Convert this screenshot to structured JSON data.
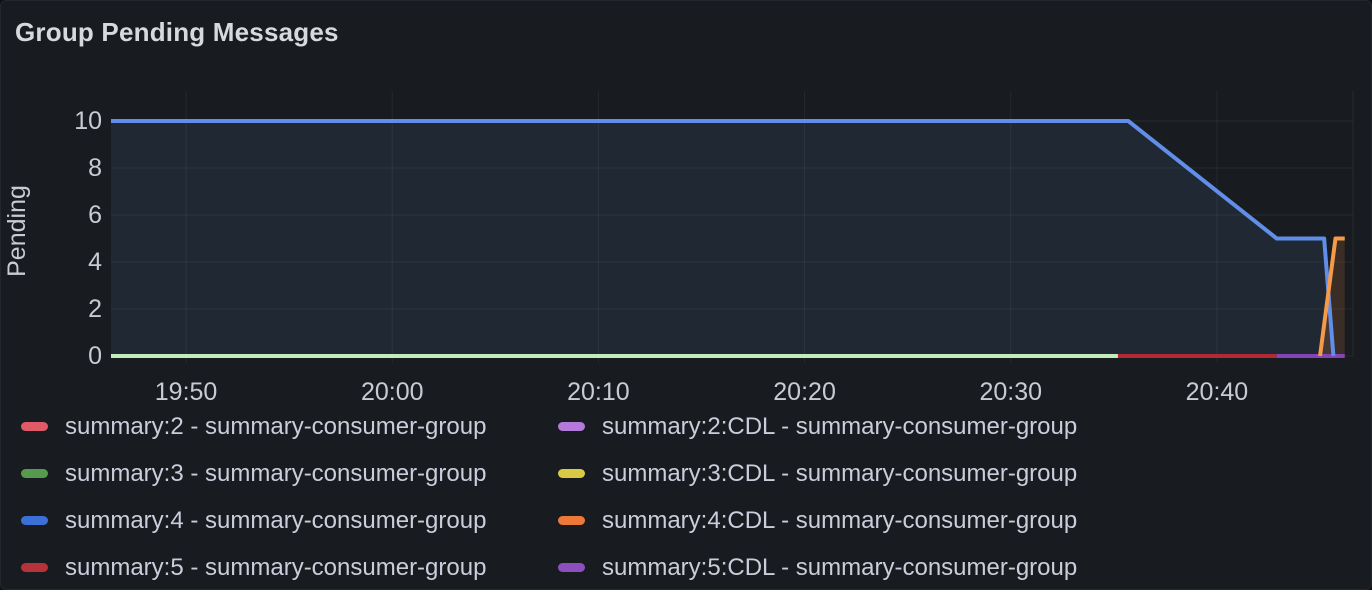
{
  "header": {
    "title": "Group Pending Messages"
  },
  "colors": {
    "panel_bg": "#181b1f",
    "title_text": "#d8d9de",
    "axis_text": "#c9cbd3",
    "legend_text": "#ccccdc",
    "grid_line": "rgba(204,204,220,0.08)"
  },
  "chart_data": {
    "type": "line",
    "title": "Group Pending Messages",
    "xlabel": "",
    "ylabel": "Pending",
    "x_unit": "minutes since 19:00 (HH:MM clock time shown on axis)",
    "x_domain": [
      46.36,
      106.6
    ],
    "ylim": [
      0,
      10
    ],
    "grid": true,
    "legend_position": "bottom",
    "x_ticks": [
      {
        "value": 50,
        "label": "19:50"
      },
      {
        "value": 60,
        "label": "20:00"
      },
      {
        "value": 70,
        "label": "20:10"
      },
      {
        "value": 80,
        "label": "20:20"
      },
      {
        "value": 90,
        "label": "20:30"
      },
      {
        "value": 100,
        "label": "20:40"
      }
    ],
    "y_ticks": [
      0,
      2,
      4,
      6,
      8,
      10
    ],
    "series": [
      {
        "id": "zero-line-green",
        "name": "pale-green zero line (pending = 0 until ~20:35)",
        "color": "#c3ecba",
        "width": 4,
        "fill": null,
        "points": [
          [
            46.36,
            0
          ],
          [
            95.2,
            0
          ]
        ]
      },
      {
        "id": "zero-line-red",
        "name": "dark-red zero line (pending = 0, ~20:35 to ~20:43)",
        "color": "#b22a31",
        "width": 4,
        "fill": null,
        "points": [
          [
            95.2,
            0
          ],
          [
            102.9,
            0
          ]
        ]
      },
      {
        "id": "zero-line-purple",
        "name": "purple zero line (pending = 0, ~20:43 to end)",
        "color": "#8444b8",
        "width": 4,
        "fill": null,
        "points": [
          [
            102.9,
            0
          ],
          [
            106.2,
            0
          ]
        ]
      },
      {
        "id": "blue-pending-line",
        "name": "blue series: 10 pending, drains to 5 then 0",
        "color": "#608ee8",
        "width": 4,
        "fill": "rgba(96,142,232,0.11)",
        "points": [
          [
            46.36,
            10
          ],
          [
            95.7,
            10
          ],
          [
            102.9,
            5
          ],
          [
            105.2,
            5
          ],
          [
            105.65,
            0
          ]
        ]
      },
      {
        "id": "orange-pending-line",
        "name": "orange series: rises from 0 to 5 at ~20:44",
        "color": "#f79a48",
        "width": 4,
        "fill": "rgba(247,154,72,0.15)",
        "points": [
          [
            105.0,
            0
          ],
          [
            105.75,
            5
          ],
          [
            106.2,
            5
          ]
        ]
      }
    ]
  },
  "legend": {
    "columns": [
      [
        {
          "label": "summary:2 - summary-consumer-group",
          "color": "#e05a68"
        },
        {
          "label": "summary:3 - summary-consumer-group",
          "color": "#569a4d"
        },
        {
          "label": "summary:4 - summary-consumer-group",
          "color": "#3a70d8"
        },
        {
          "label": "summary:5 - summary-consumer-group",
          "color": "#b8323a"
        }
      ],
      [
        {
          "label": "summary:2:CDL - summary-consumer-group",
          "color": "#b37adb"
        },
        {
          "label": "summary:3:CDL - summary-consumer-group",
          "color": "#d9c945"
        },
        {
          "label": "summary:4:CDL - summary-consumer-group",
          "color": "#ee7838"
        },
        {
          "label": "summary:5:CDL - summary-consumer-group",
          "color": "#8c4fbd"
        }
      ]
    ]
  }
}
